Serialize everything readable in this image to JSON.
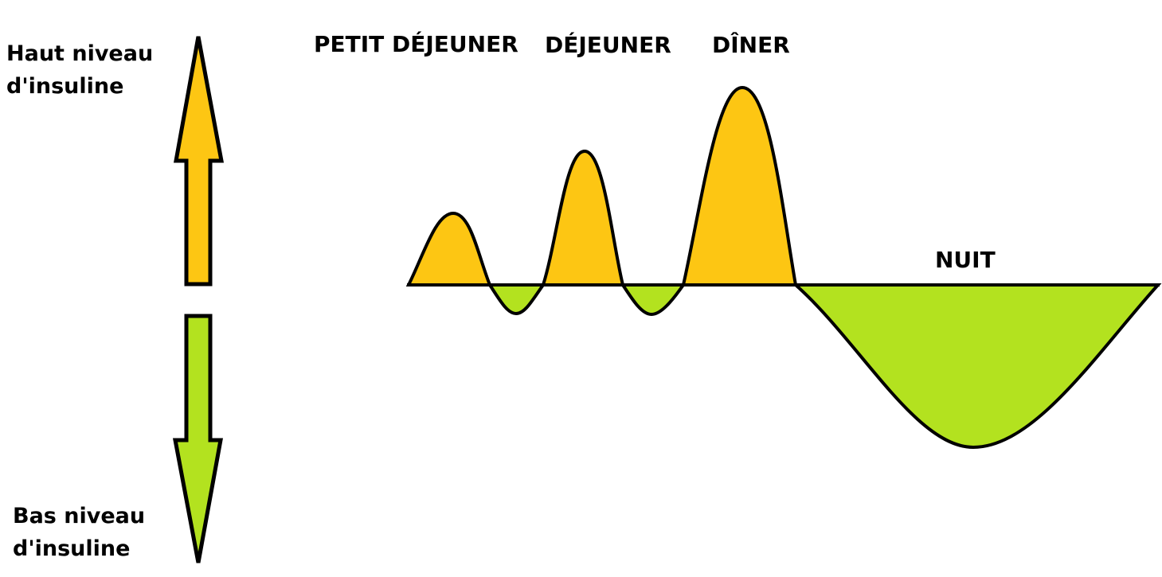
{
  "axis": {
    "high": {
      "line1": "Haut niveau",
      "line2": "d'insuline"
    },
    "low": {
      "line1": "Bas niveau",
      "line2": "d'insuline"
    }
  },
  "periods": {
    "breakfast": "PETIT DÉJEUNER",
    "lunch": "DÉJEUNER",
    "dinner": "DÎNER",
    "night": "NUIT"
  },
  "colors": {
    "high": "#fdc613",
    "low": "#b3e21f",
    "outline": "#000000"
  },
  "icons": {
    "up": "arrow-up-icon",
    "down": "arrow-down-icon"
  }
}
